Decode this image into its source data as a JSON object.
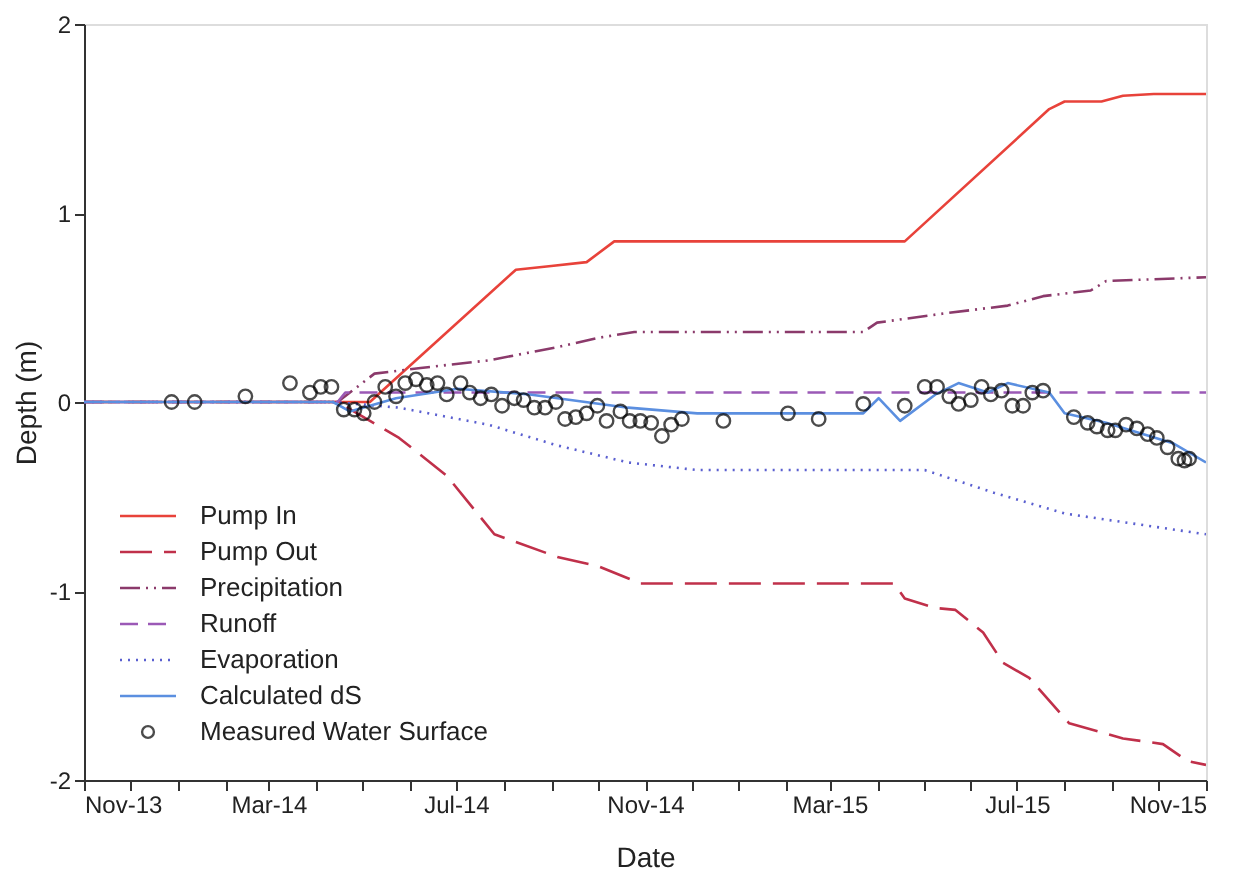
{
  "chart_data": {
    "type": "line",
    "xlabel": "Date",
    "ylabel": "Depth (m)",
    "xlim": [
      "2013-11-01",
      "2015-11-01"
    ],
    "ylim": [
      -2,
      2
    ],
    "yticks": [
      -2,
      -1,
      0,
      1,
      2
    ],
    "xticks": [
      {
        "value": "2013-11-01",
        "label": "Nov-13"
      },
      {
        "value": "2013-12-01",
        "label": null
      },
      {
        "value": "2014-01-01",
        "label": null
      },
      {
        "value": "2014-02-01",
        "label": null
      },
      {
        "value": "2014-03-01",
        "label": "Mar-14"
      },
      {
        "value": "2014-04-01",
        "label": null
      },
      {
        "value": "2014-05-01",
        "label": null
      },
      {
        "value": "2014-06-01",
        "label": null
      },
      {
        "value": "2014-07-01",
        "label": "Jul-14"
      },
      {
        "value": "2014-08-01",
        "label": null
      },
      {
        "value": "2014-09-01",
        "label": null
      },
      {
        "value": "2014-10-01",
        "label": null
      },
      {
        "value": "2014-11-01",
        "label": "Nov-14"
      },
      {
        "value": "2014-12-01",
        "label": null
      },
      {
        "value": "2015-01-01",
        "label": null
      },
      {
        "value": "2015-02-01",
        "label": null
      },
      {
        "value": "2015-03-01",
        "label": "Mar-15"
      },
      {
        "value": "2015-04-01",
        "label": null
      },
      {
        "value": "2015-05-01",
        "label": null
      },
      {
        "value": "2015-06-01",
        "label": null
      },
      {
        "value": "2015-07-01",
        "label": "Jul-15"
      },
      {
        "value": "2015-08-01",
        "label": null
      },
      {
        "value": "2015-09-01",
        "label": null
      },
      {
        "value": "2015-10-01",
        "label": null
      },
      {
        "value": "2015-11-01",
        "label": "Nov-15"
      }
    ],
    "grid": false,
    "legend": "bottom left",
    "series": [
      {
        "name": "Pump In",
        "color": "#e8423a",
        "line_style": "solid",
        "x": [
          "2013-11-01",
          "2014-05-06",
          "2014-08-09",
          "2014-09-01",
          "2014-09-24",
          "2014-10-12",
          "2015-04-19",
          "2015-07-22",
          "2015-08-01",
          "2015-08-25",
          "2015-09-08",
          "2015-09-28",
          "2015-11-01"
        ],
        "values": [
          0,
          0,
          0.7,
          0.72,
          0.74,
          0.85,
          0.85,
          1.55,
          1.59,
          1.59,
          1.62,
          1.63,
          1.63
        ]
      },
      {
        "name": "Pump Out",
        "color": "#c0304a",
        "line_style": "longdash",
        "x": [
          "2013-11-01",
          "2014-04-15",
          "2014-05-25",
          "2014-06-25",
          "2014-07-26",
          "2014-09-05",
          "2014-10-02",
          "2014-10-29",
          "2015-04-12",
          "2015-04-19",
          "2015-05-09",
          "2015-05-22",
          "2015-06-09",
          "2015-06-22",
          "2015-07-09",
          "2015-08-04",
          "2015-09-08",
          "2015-10-04",
          "2015-10-20",
          "2015-11-01"
        ],
        "values": [
          0,
          0,
          -0.19,
          -0.39,
          -0.7,
          -0.82,
          -0.87,
          -0.96,
          -0.96,
          -1.04,
          -1.09,
          -1.1,
          -1.22,
          -1.38,
          -1.46,
          -1.7,
          -1.78,
          -1.81,
          -1.9,
          -1.92
        ]
      },
      {
        "name": "Precipitation",
        "color": "#8b3a6b",
        "line_style": "dashdot",
        "x": [
          "2013-11-01",
          "2014-04-15",
          "2014-05-09",
          "2014-06-08",
          "2014-07-22",
          "2014-09-05",
          "2014-10-02",
          "2014-10-25",
          "2015-03-23",
          "2015-04-01",
          "2015-05-16",
          "2015-06-25",
          "2015-07-18",
          "2015-08-18",
          "2015-08-28",
          "2015-11-01"
        ],
        "values": [
          0,
          0,
          0.15,
          0.18,
          0.22,
          0.29,
          0.34,
          0.37,
          0.37,
          0.42,
          0.47,
          0.51,
          0.56,
          0.59,
          0.64,
          0.66
        ]
      },
      {
        "name": "Runoff",
        "color": "#9b59b6",
        "line_style": "dashed",
        "x": [
          "2013-11-01",
          "2014-04-15",
          "2014-04-20",
          "2015-11-01"
        ],
        "values": [
          0,
          0,
          0.05,
          0.05
        ]
      },
      {
        "name": "Evaporation",
        "color": "#5a5fd0",
        "line_style": "dotted",
        "x": [
          "2013-11-01",
          "2014-04-12",
          "2014-05-25",
          "2014-07-22",
          "2014-09-05",
          "2014-10-21",
          "2014-12-05",
          "2015-05-02",
          "2015-06-16",
          "2015-08-01",
          "2015-11-01"
        ],
        "values": [
          0,
          0,
          -0.03,
          -0.12,
          -0.23,
          -0.32,
          -0.36,
          -0.36,
          -0.48,
          -0.59,
          -0.7
        ]
      },
      {
        "name": "Calculated dS",
        "color": "#5b8fe0",
        "line_style": "solid",
        "x": [
          "2013-11-01",
          "2014-04-12",
          "2014-04-23",
          "2014-05-23",
          "2014-07-02",
          "2014-08-18",
          "2014-10-21",
          "2014-12-05",
          "2015-03-23",
          "2015-04-02",
          "2015-04-16",
          "2015-05-09",
          "2015-05-24",
          "2015-06-12",
          "2015-06-25",
          "2015-07-22",
          "2015-08-01",
          "2015-08-28",
          "2015-10-11",
          "2015-11-01"
        ],
        "values": [
          0,
          0,
          -0.05,
          0.02,
          0.07,
          0.04,
          -0.03,
          -0.06,
          -0.06,
          0.02,
          -0.1,
          0.04,
          0.1,
          0.05,
          0.1,
          0.05,
          -0.06,
          -0.11,
          -0.22,
          -0.32
        ]
      },
      {
        "name": "Measured Water Surface",
        "type": "scatter",
        "marker": "circle",
        "color": "#000000",
        "x": [
          "2013-12-28",
          "2014-01-12",
          "2014-02-14",
          "2014-03-15",
          "2014-03-28",
          "2014-04-04",
          "2014-04-11",
          "2014-04-19",
          "2014-04-26",
          "2014-05-02",
          "2014-05-09",
          "2014-05-16",
          "2014-05-23",
          "2014-05-29",
          "2014-06-05",
          "2014-06-12",
          "2014-06-19",
          "2014-06-25",
          "2014-07-04",
          "2014-07-10",
          "2014-07-17",
          "2014-07-24",
          "2014-07-31",
          "2014-08-08",
          "2014-08-14",
          "2014-08-21",
          "2014-08-28",
          "2014-09-04",
          "2014-09-10",
          "2014-09-17",
          "2014-09-24",
          "2014-10-01",
          "2014-10-07",
          "2014-10-16",
          "2014-10-22",
          "2014-10-29",
          "2014-11-05",
          "2014-11-12",
          "2014-11-18",
          "2014-11-25",
          "2014-12-22",
          "2015-02-02",
          "2015-02-22",
          "2015-03-23",
          "2015-04-19",
          "2015-05-02",
          "2015-05-10",
          "2015-05-18",
          "2015-05-24",
          "2015-06-01",
          "2015-06-08",
          "2015-06-14",
          "2015-06-21",
          "2015-06-28",
          "2015-07-05",
          "2015-07-11",
          "2015-07-18",
          "2015-08-07",
          "2015-08-16",
          "2015-08-22",
          "2015-08-29",
          "2015-09-03",
          "2015-09-10",
          "2015-09-17",
          "2015-09-24",
          "2015-09-30",
          "2015-10-07",
          "2015-10-14",
          "2015-10-18",
          "2015-10-21"
        ],
        "values": [
          0.0,
          0.0,
          0.03,
          0.1,
          0.05,
          0.08,
          0.08,
          -0.04,
          -0.04,
          -0.06,
          0.0,
          0.08,
          0.03,
          0.1,
          0.12,
          0.09,
          0.1,
          0.04,
          0.1,
          0.05,
          0.02,
          0.04,
          -0.02,
          0.02,
          0.01,
          -0.03,
          -0.03,
          0.0,
          -0.09,
          -0.08,
          -0.06,
          -0.02,
          -0.1,
          -0.05,
          -0.1,
          -0.1,
          -0.11,
          -0.18,
          -0.12,
          -0.09,
          -0.1,
          -0.06,
          -0.09,
          -0.01,
          -0.02,
          0.08,
          0.08,
          0.03,
          -0.01,
          0.01,
          0.08,
          0.04,
          0.06,
          -0.02,
          -0.02,
          0.05,
          0.06,
          -0.08,
          -0.11,
          -0.13,
          -0.15,
          -0.15,
          -0.12,
          -0.14,
          -0.17,
          -0.19,
          -0.24,
          -0.3,
          -0.31,
          -0.3
        ]
      }
    ]
  }
}
